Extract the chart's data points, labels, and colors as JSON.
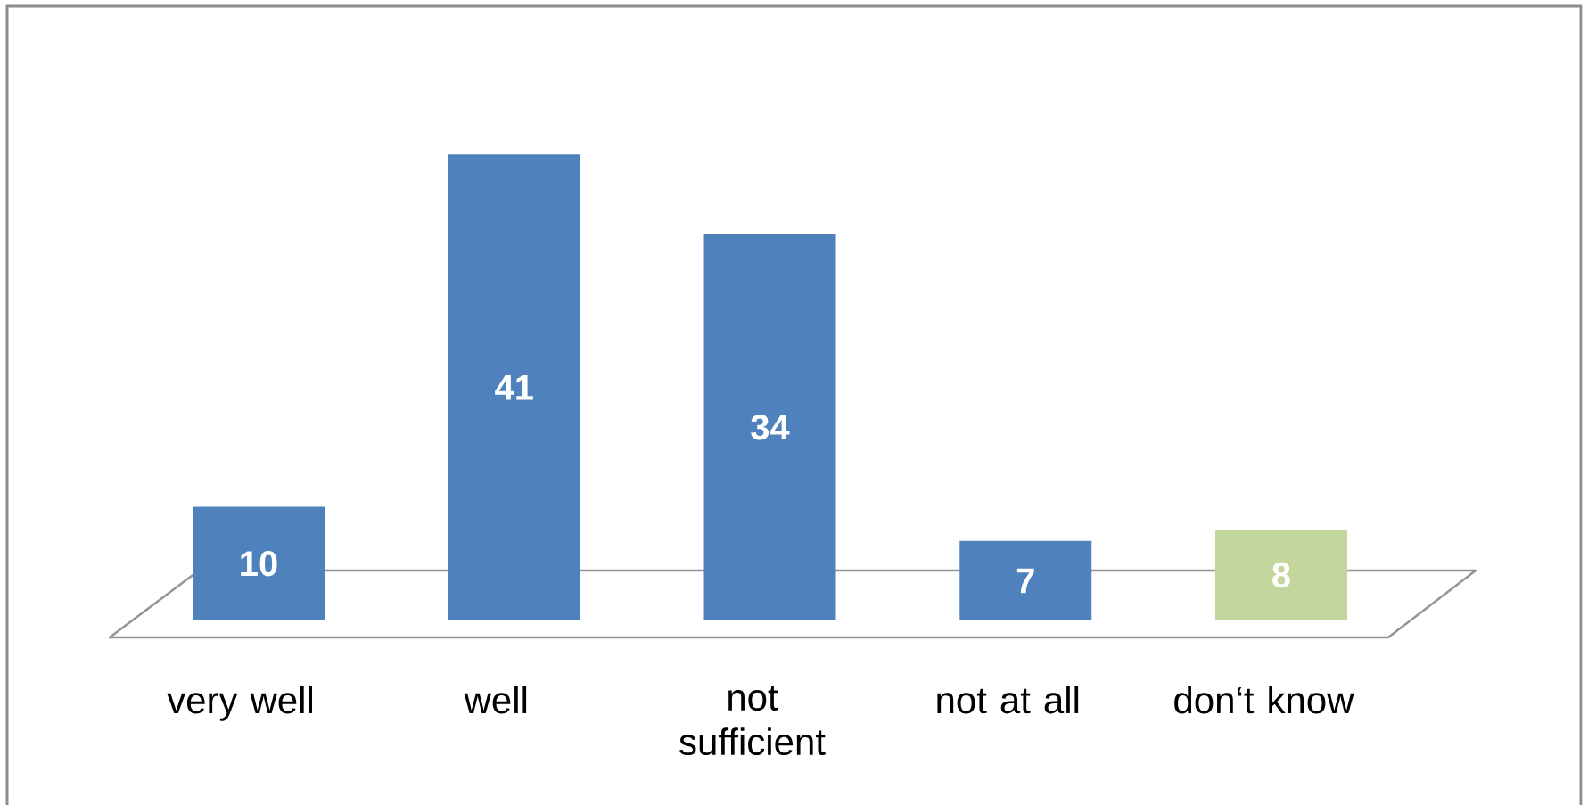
{
  "chart_data": {
    "type": "bar",
    "categories": [
      "very well",
      "well",
      "not sufficient",
      "not  at all",
      "don‘t know"
    ],
    "values": [
      10,
      41,
      34,
      7,
      8
    ],
    "colors": [
      "#4f81bd",
      "#4f81bd",
      "#4f81bd",
      "#4f81bd",
      "#c3d69b"
    ],
    "data_labels": true
  }
}
